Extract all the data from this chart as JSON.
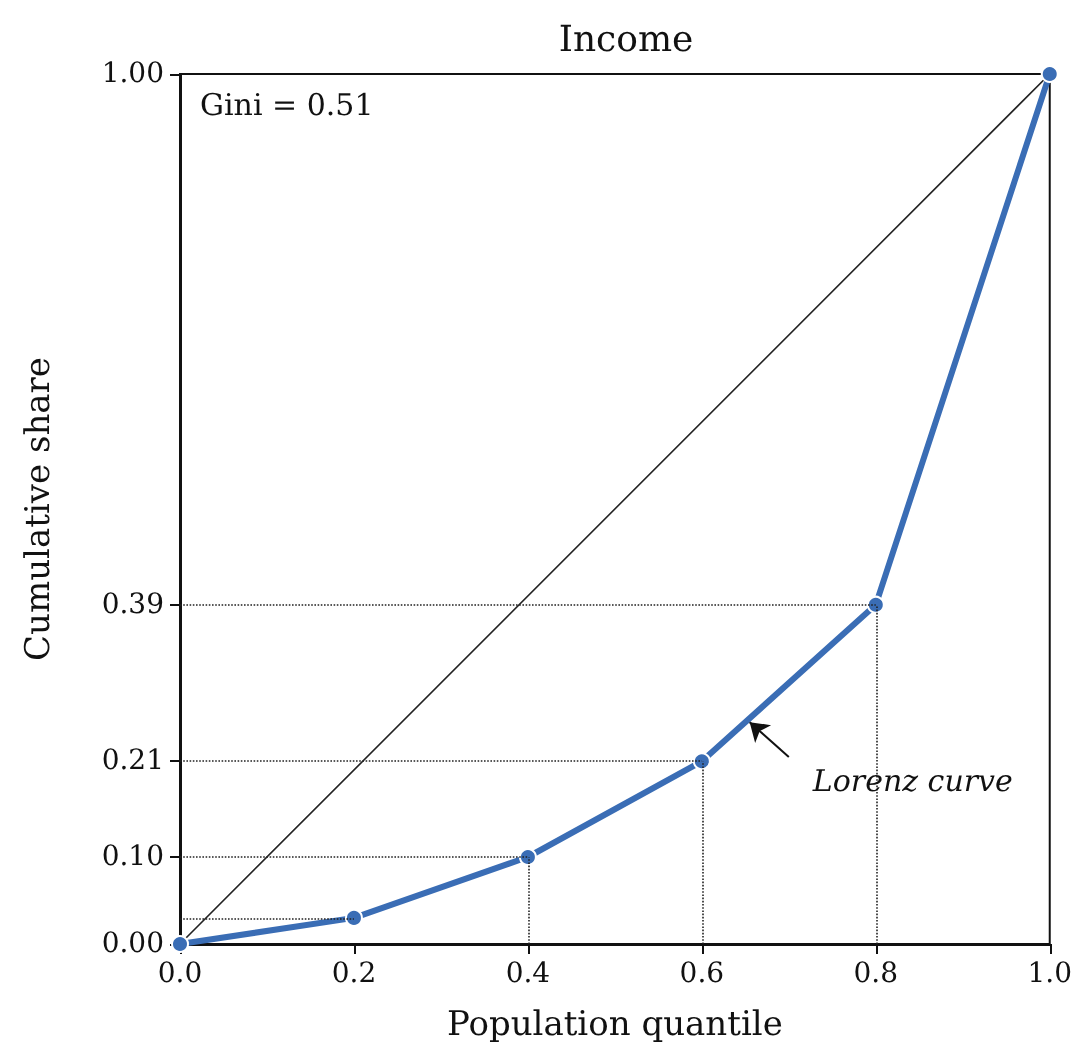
{
  "chart_data": {
    "type": "line",
    "title": "Income",
    "xlabel": "Population quantile",
    "ylabel": "Cumulative share",
    "series": [
      {
        "color": "#3a6db5",
        "x": [
          0,
          0.2,
          0.4,
          0.6,
          0.8,
          1.0
        ],
        "values": [
          0,
          0.03,
          0.1,
          0.21,
          0.39,
          1.0
        ],
        "marker": "circle",
        "line_style": "solid"
      },
      {
        "color": "#222222",
        "x": [
          0,
          1
        ],
        "values": [
          0,
          1
        ],
        "marker": "none",
        "line_style": "solid"
      }
    ],
    "xlim": [
      0,
      1
    ],
    "ylim": [
      0,
      1
    ],
    "xticks": [
      {
        "value": 0,
        "label": "0.0"
      },
      {
        "value": 0.2,
        "label": "0.2"
      },
      {
        "value": 0.4,
        "label": "0.4"
      },
      {
        "value": 0.6,
        "label": "0.6"
      },
      {
        "value": 0.8,
        "label": "0.8"
      },
      {
        "value": 1,
        "label": "1.0"
      }
    ],
    "yticks": [
      {
        "value": 0,
        "label": "0.00"
      },
      {
        "value": 0.1,
        "label": "0.10"
      },
      {
        "value": 0.21,
        "label": "0.21"
      },
      {
        "value": 0.39,
        "label": "0.39"
      },
      {
        "value": 1,
        "label": "1.00"
      }
    ],
    "ref_lines": [
      {
        "axis": "y",
        "value": 0.03,
        "line_style": "dotted",
        "color": "#222222"
      },
      {
        "axis": "y",
        "value": 0.1,
        "line_style": "dotted",
        "color": "#222222"
      },
      {
        "axis": "y",
        "value": 0.21,
        "line_style": "dotted",
        "color": "#222222"
      },
      {
        "axis": "y",
        "value": 0.39,
        "line_style": "dotted",
        "color": "#222222"
      },
      {
        "axis": "x",
        "value": 0.4,
        "line_style": "dotted",
        "color": "#222222"
      },
      {
        "axis": "x",
        "value": 0.6,
        "line_style": "dotted",
        "color": "#222222"
      },
      {
        "axis": "x",
        "value": 0.8,
        "line_style": "dotted",
        "color": "#222222"
      }
    ],
    "annotations": [
      "Gini = 0.51",
      {
        "text": "Lorenz curve",
        "x": 0.655,
        "y": 0.255
      }
    ],
    "grid": false
  }
}
